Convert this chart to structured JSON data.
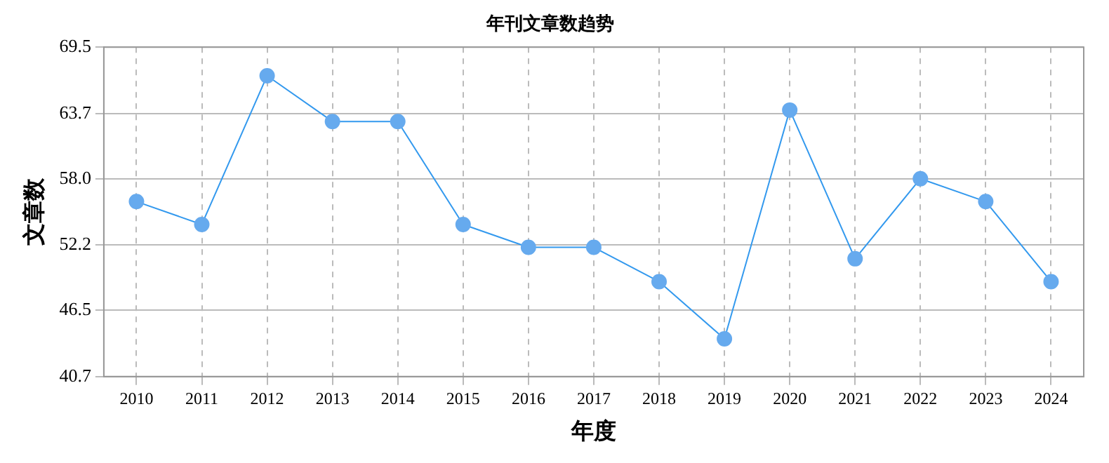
{
  "chart_data": {
    "type": "line",
    "title": "年刊文章数趋势",
    "xlabel": "年度",
    "ylabel": "文章数",
    "categories": [
      "2010",
      "2011",
      "2012",
      "2013",
      "2014",
      "2015",
      "2016",
      "2017",
      "2018",
      "2019",
      "2020",
      "2021",
      "2022",
      "2023",
      "2024"
    ],
    "series": [
      {
        "color": "#3399ee",
        "values": [
          56,
          54,
          67,
          63,
          63,
          54,
          52,
          52,
          49,
          44,
          64,
          51,
          58,
          56,
          49
        ]
      }
    ],
    "ylim": [
      40.7,
      69.5
    ],
    "yticks": [
      {
        "value": 40.7,
        "label": "40.7"
      },
      {
        "value": 46.5,
        "label": "46.5"
      },
      {
        "value": 52.2,
        "label": "52.2"
      },
      {
        "value": 58.0,
        "label": "58.0"
      },
      {
        "value": 63.7,
        "label": "63.7"
      },
      {
        "value": 69.5,
        "label": "69.5"
      }
    ],
    "grid": true,
    "marker": "circle",
    "line_style": "solid",
    "legend": false
  }
}
